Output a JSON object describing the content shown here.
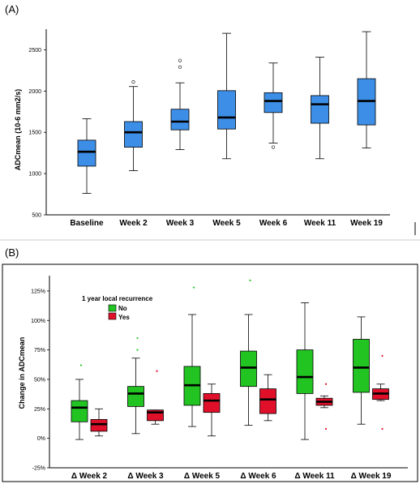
{
  "colors": {
    "panel_a_box": "#3d8ee6",
    "no_box": "#22c422",
    "yes_box": "#e0102a",
    "whisker": "#000000"
  },
  "chart_data": [
    {
      "panel": "(A)",
      "type": "boxplot",
      "ylabel": "ADCmean (10-6 mm2/s)",
      "ylim": [
        500,
        2750
      ],
      "yticks": [
        500,
        1000,
        1500,
        2000,
        2500
      ],
      "categories": [
        "Baseline",
        "Week 2",
        "Week 3",
        "Week 5",
        "Week 6",
        "Week 11",
        "Week 19"
      ],
      "boxes": [
        {
          "min": 760,
          "q1": 1090,
          "median": 1265,
          "q3": 1405,
          "max": 1665,
          "outliers": []
        },
        {
          "min": 1035,
          "q1": 1320,
          "median": 1500,
          "q3": 1630,
          "max": 2055,
          "outliers": [
            2110
          ]
        },
        {
          "min": 1290,
          "q1": 1530,
          "median": 1630,
          "q3": 1780,
          "max": 2100,
          "outliers": [
            2290,
            2370
          ]
        },
        {
          "min": 1180,
          "q1": 1540,
          "median": 1680,
          "q3": 2005,
          "max": 2700,
          "outliers": []
        },
        {
          "min": 1370,
          "q1": 1740,
          "median": 1880,
          "q3": 1980,
          "max": 2340,
          "outliers": [
            1320
          ]
        },
        {
          "min": 1180,
          "q1": 1610,
          "median": 1840,
          "q3": 1945,
          "max": 2410,
          "outliers": []
        },
        {
          "min": 1310,
          "q1": 1590,
          "median": 1880,
          "q3": 2150,
          "max": 2720,
          "outliers": []
        }
      ]
    },
    {
      "panel": "(B)",
      "type": "boxplot",
      "ylabel": "Change in ADCmean",
      "ylim": [
        -25,
        138
      ],
      "yticks": [
        -25,
        0,
        25,
        50,
        75,
        100,
        125
      ],
      "ytick_labels": [
        "-25%",
        "0%",
        "25%",
        "50%",
        "75%",
        "100%",
        "125%"
      ],
      "categories": [
        "Δ Week 2",
        "Δ Week 3",
        "Δ Week 5",
        "Δ Week 6",
        "Δ Week 11",
        "Δ Week 19"
      ],
      "legend": {
        "title": "1 year local recurrence",
        "items": [
          "No",
          "Yes"
        ]
      },
      "series": [
        {
          "name": "No",
          "boxes": [
            {
              "min": -1,
              "q1": 14,
              "median": 26,
              "q3": 32,
              "max": 50,
              "outliers": [
                62
              ]
            },
            {
              "min": 4,
              "q1": 27,
              "median": 38,
              "q3": 44,
              "max": 68,
              "outliers": [
                75,
                85
              ]
            },
            {
              "min": 10,
              "q1": 28,
              "median": 45,
              "q3": 61,
              "max": 105,
              "outliers": [
                128
              ]
            },
            {
              "min": 11,
              "q1": 44,
              "median": 60,
              "q3": 74,
              "max": 105,
              "outliers": [
                134
              ]
            },
            {
              "min": -1,
              "q1": 38,
              "median": 52,
              "q3": 75,
              "max": 115,
              "outliers": []
            },
            {
              "min": 12,
              "q1": 39,
              "median": 60,
              "q3": 84,
              "max": 103,
              "outliers": []
            }
          ]
        },
        {
          "name": "Yes",
          "boxes": [
            {
              "min": 2,
              "q1": 6,
              "median": 12,
              "q3": 16,
              "max": 25,
              "outliers": []
            },
            {
              "min": 12,
              "q1": 15,
              "median": 22,
              "q3": 24,
              "max": 24,
              "outliers": [
                57
              ]
            },
            {
              "min": 2,
              "q1": 22,
              "median": 32,
              "q3": 38,
              "max": 46,
              "outliers": []
            },
            {
              "min": 15,
              "q1": 21,
              "median": 33,
              "q3": 42,
              "max": 54,
              "outliers": []
            },
            {
              "min": 26,
              "q1": 28,
              "median": 31,
              "q3": 34,
              "max": 36,
              "outliers": [
                8,
                46
              ]
            },
            {
              "min": 32,
              "q1": 33,
              "median": 38,
              "q3": 42,
              "max": 46,
              "outliers": [
                8,
                70
              ]
            }
          ]
        }
      ]
    }
  ]
}
